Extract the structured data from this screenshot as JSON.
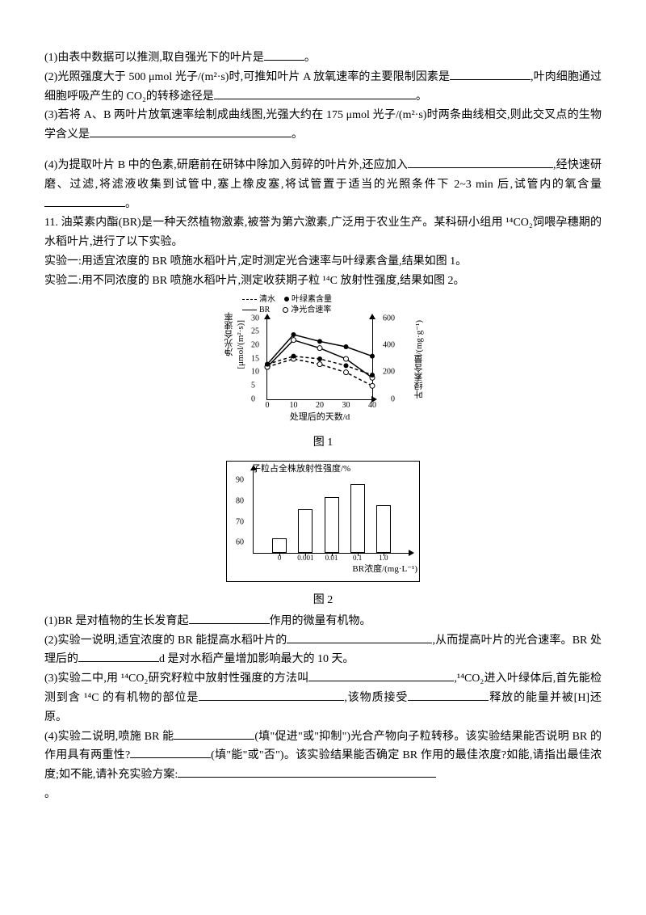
{
  "q1": {
    "t1": "(1)由表中数据可以推测,取自强光下的叶片是",
    "t1_end": "。",
    "t2a": "(2)光照强度大于 500 μmol 光子/(m²·s)时,可推知叶片 A 放氧速率的主要限制因素是",
    "t2b": ",叶肉细胞通过细胞呼吸产生的 CO₂的转移途径是",
    "t2_end": "。",
    "t3a": "(3)若将 A、B 两叶片放氧速率绘制成曲线图,光强大约在 175 μmol 光子/(m²·s)时两条曲线相交,则此交叉点的生物学含义是",
    "t3_end": "。",
    "t4a": "(4)为提取叶片 B 中的色素,研磨前在研钵中除加入剪碎的叶片外,还应加入",
    "t4b": ",经快速研磨、过滤,将滤液收集到试管中,塞上橡皮塞,将试管置于适当的光照条件下 2~3 min 后,试管内的氧含量",
    "t4_end": "。"
  },
  "q11": {
    "intro1": "11. 油菜素内酯(BR)是一种天然植物激素,被誉为第六激素,广泛用于农业生产。某科研小组用 ¹⁴CO₂饲喂孕穗期的水稻叶片,进行了以下实验。",
    "exp1": "实验一:用适宜浓度的 BR 喷施水稻叶片,定时测定光合速率与叶绿素含量,结果如图 1。",
    "exp2": "实验二:用不同浓度的 BR 喷施水稻叶片,测定收获期子粒 ¹⁴C 放射性强度,结果如图 2。",
    "cap1": "图 1",
    "cap2": "图 2",
    "p1a": "(1)BR 是对植物的生长发育起",
    "p1b": "作用的微量有机物。",
    "p2a": "(2)实验一说明,适宜浓度的 BR 能提高水稻叶片的",
    "p2b": ",从而提高叶片的光合速率。BR 处理后的",
    "p2c": "d 是对水稻产量增加影响最大的 10 天。",
    "p3a": "(3)实验二中,用 ¹⁴CO₂研究籽粒中放射性强度的方法叫",
    "p3b": ",¹⁴CO₂进入叶绿体后,首先能检测到含 ¹⁴C 的有机物的部位是",
    "p3c": ",该物质接受",
    "p3d": "释放的能量并被[H]还原。",
    "p4a": "(4)实验二说明,喷施 BR 能",
    "p4b": "(填\"促进\"或\"抑制\")光合产物向子粒转移。该实验结果能否说明 BR 的作用具有两重性?",
    "p4c": "(填\"能\"或\"否\")。该实验结果能否确定 BR 作用的最佳浓度?如能,请指出最佳浓度;如不能,请补充实验方案:",
    "p4_end": "。"
  },
  "chart1": {
    "left_axis_label": "净光合速率",
    "left_axis_unit": "[μmol/(m²·s)]",
    "right_axis_label": "叶绿素含量/(mg·g⁻¹)",
    "x_label": "处理后的天数/d",
    "legend": {
      "l1": "清水",
      "l2": "叶绿素含量",
      "l3": "BR",
      "l4": "净光合速率"
    },
    "yticks_left": [
      0,
      5,
      10,
      15,
      20,
      25,
      30
    ],
    "yticks_right": [
      0,
      200,
      400,
      600
    ],
    "xticks": [
      0,
      10,
      20,
      30,
      40
    ],
    "series": {
      "br_net": {
        "style": "solid",
        "marker": "open",
        "pts": [
          [
            0,
            12
          ],
          [
            10,
            22
          ],
          [
            20,
            19
          ],
          [
            30,
            15
          ],
          [
            40,
            8
          ]
        ]
      },
      "water_net": {
        "style": "dashed",
        "marker": "open",
        "pts": [
          [
            0,
            12
          ],
          [
            10,
            15
          ],
          [
            20,
            13
          ],
          [
            30,
            10
          ],
          [
            40,
            5
          ]
        ]
      },
      "br_chl": {
        "style": "solid",
        "marker": "filled",
        "pts": [
          [
            0,
            260
          ],
          [
            10,
            480
          ],
          [
            20,
            430
          ],
          [
            30,
            390
          ],
          [
            40,
            320
          ]
        ]
      },
      "water_chl": {
        "style": "dashed",
        "marker": "filled",
        "pts": [
          [
            0,
            260
          ],
          [
            10,
            320
          ],
          [
            20,
            300
          ],
          [
            30,
            250
          ],
          [
            40,
            180
          ]
        ]
      }
    },
    "colors": {
      "stroke": "#000000",
      "bg": "#ffffff"
    }
  },
  "chart2": {
    "y_label": "子粒占全株放射性强度/%",
    "x_label": "BR浓度/(mg·L⁻¹)",
    "yticks": [
      60,
      70,
      80,
      90
    ],
    "yrange": [
      55,
      95
    ],
    "categories": [
      "0",
      "0.001",
      "0.01",
      "0.1",
      "1.0"
    ],
    "values": [
      62,
      76,
      82,
      88,
      78
    ],
    "bar_color": "#ffffff",
    "border_color": "#000000"
  }
}
